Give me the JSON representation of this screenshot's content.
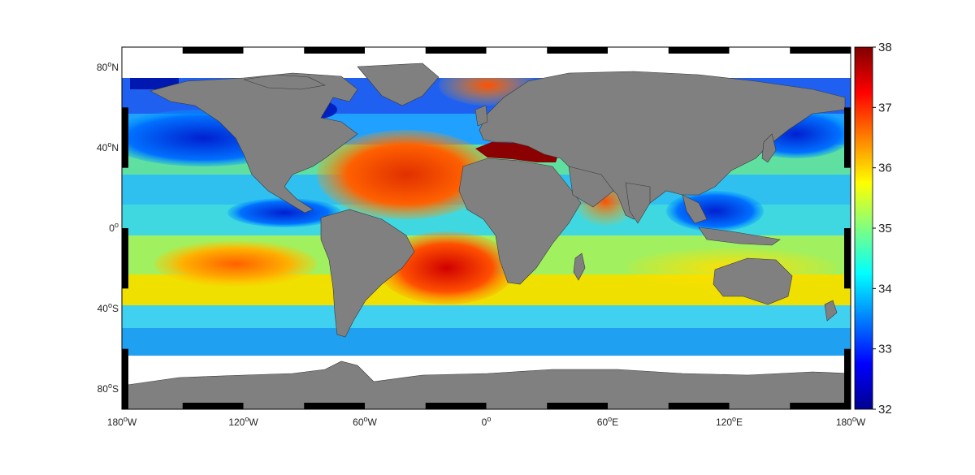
{
  "map": {
    "projection": "equirectangular",
    "variable": "sea surface salinity",
    "land_color": "#808080",
    "no_data_color": "#ffffff",
    "frame_color": "#000000",
    "lon_labels": [
      {
        "lon": -180,
        "base": "180",
        "sup": "o",
        "suffix": "W"
      },
      {
        "lon": -120,
        "base": "120",
        "sup": "o",
        "suffix": "W"
      },
      {
        "lon": -60,
        "base": "60",
        "sup": "o",
        "suffix": "W"
      },
      {
        "lon": 0,
        "base": "0",
        "sup": "o",
        "suffix": ""
      },
      {
        "lon": 60,
        "base": "60",
        "sup": "o",
        "suffix": "E"
      },
      {
        "lon": 120,
        "base": "120",
        "sup": "o",
        "suffix": "E"
      },
      {
        "lon": 180,
        "base": "180",
        "sup": "o",
        "suffix": "W"
      }
    ],
    "lat_labels": [
      {
        "lat": 80,
        "base": "80",
        "sup": "o",
        "suffix": "N"
      },
      {
        "lat": 40,
        "base": "40",
        "sup": "o",
        "suffix": "N"
      },
      {
        "lat": 0,
        "base": "0",
        "sup": "o",
        "suffix": ""
      },
      {
        "lat": -40,
        "base": "40",
        "sup": "o",
        "suffix": "S"
      },
      {
        "lat": -80,
        "base": "80",
        "sup": "o",
        "suffix": "S"
      }
    ]
  },
  "colorbar": {
    "min": 32,
    "max": 38,
    "ticks": [
      "32",
      "33",
      "34",
      "35",
      "36",
      "37",
      "38"
    ],
    "colormap": "jet",
    "stops": [
      "#00008f",
      "#0000ff",
      "#0080ff",
      "#00ffff",
      "#80ff80",
      "#ffff00",
      "#ff8000",
      "#ff0000",
      "#800000"
    ]
  }
}
